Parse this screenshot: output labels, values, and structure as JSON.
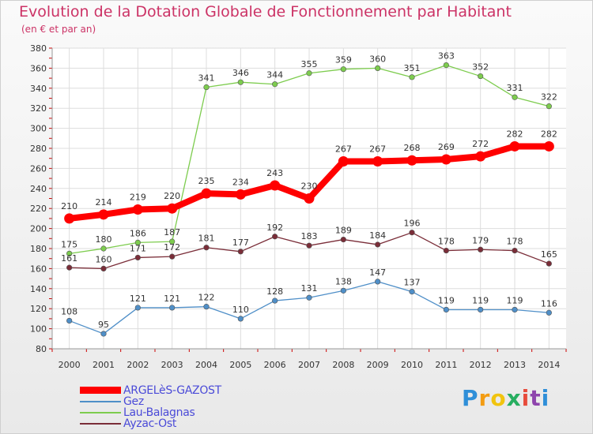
{
  "title": "Evolution de la Dotation Globale de Fonctionnement par Habitant",
  "subtitle": "(en € et par an)",
  "logo": {
    "letters": [
      "P",
      "r",
      "o",
      "x",
      "i",
      "t",
      "i"
    ],
    "colors": [
      "#2f8fd8",
      "#f39c12",
      "#f1c40f",
      "#27ae60",
      "#e74c3c",
      "#8e44ad",
      "#2f8fd8"
    ]
  },
  "chart_data": {
    "type": "line",
    "x": [
      "2000",
      "2001",
      "2002",
      "2003",
      "2004",
      "2005",
      "2006",
      "2007",
      "2008",
      "2009",
      "2010",
      "2011",
      "2012",
      "2013",
      "2014"
    ],
    "ylim": [
      80,
      380
    ],
    "yticks": [
      "80",
      "100",
      "120",
      "140",
      "160",
      "180",
      "200",
      "220",
      "240",
      "260",
      "280",
      "300",
      "320",
      "340",
      "360",
      "380"
    ],
    "grid": true,
    "legend": "bottom-left",
    "series": [
      {
        "name": "ARGELèS-GAZOST",
        "color": "#ff0000",
        "values": [
          210,
          214,
          219,
          220,
          235,
          234,
          243,
          230,
          267,
          267,
          268,
          269,
          272,
          282,
          282
        ]
      },
      {
        "name": "Gez",
        "color": "#4f8fc8",
        "values": [
          108,
          95,
          121,
          121,
          122,
          110,
          128,
          131,
          138,
          147,
          137,
          119,
          119,
          119,
          116
        ]
      },
      {
        "name": "Lau-Balagnas",
        "color": "#7dcc4e",
        "values": [
          175,
          180,
          186,
          187,
          341,
          346,
          344,
          355,
          359,
          360,
          351,
          363,
          352,
          331,
          322
        ]
      },
      {
        "name": "Ayzac-Ost",
        "color": "#7a2d38",
        "values": [
          161,
          160,
          171,
          172,
          181,
          177,
          192,
          183,
          189,
          184,
          196,
          178,
          179,
          178,
          165
        ]
      }
    ]
  }
}
